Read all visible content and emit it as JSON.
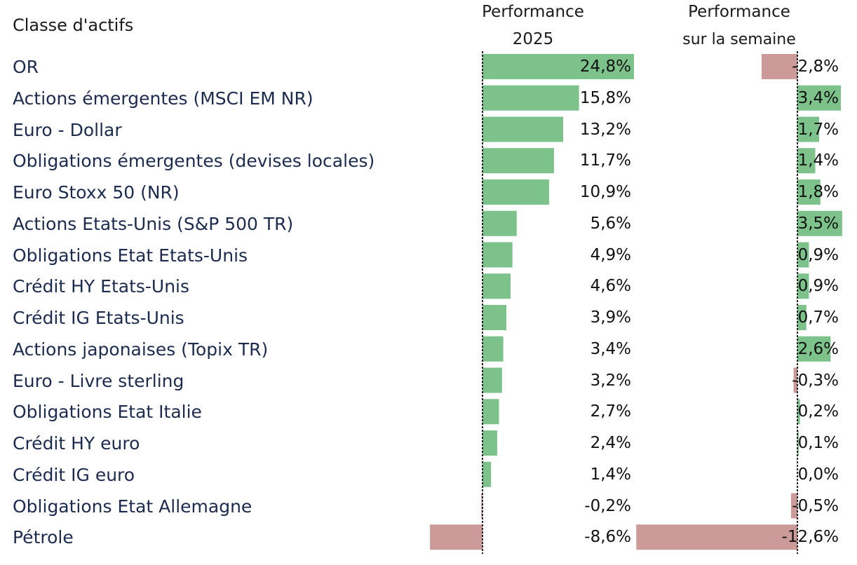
{
  "header": {
    "category": "Classe d'actifs",
    "ytd_line1": "Performance",
    "ytd_line2": "2025",
    "week_line1": "Performance",
    "week_line2": "sur la semaine"
  },
  "colors": {
    "positive": "#7cc28a",
    "negative": "#cc9a98",
    "label": "#1c2b4e"
  },
  "chart_data": {
    "type": "bar",
    "orientation": "horizontal",
    "categories": [
      "OR",
      "Actions émergentes (MSCI EM NR)",
      "Euro - Dollar",
      "Obligations émergentes (devises locales)",
      "Euro Stoxx 50 (NR)",
      "Actions Etats-Unis (S&P 500 TR)",
      "Obligations Etat Etats-Unis",
      "Crédit HY Etats-Unis",
      "Crédit IG Etats-Unis",
      "Actions japonaises (Topix TR)",
      "Euro - Livre sterling",
      "Obligations Etat Italie",
      "Crédit HY euro",
      "Crédit IG euro",
      "Obligations Etat Allemagne",
      "Pétrole"
    ],
    "series": [
      {
        "name": "Performance 2025",
        "values": [
          24.8,
          15.8,
          13.2,
          11.7,
          10.9,
          5.6,
          4.9,
          4.6,
          3.9,
          3.4,
          3.2,
          2.7,
          2.4,
          1.4,
          -0.2,
          -8.6
        ],
        "labels": [
          "24,8%",
          "15,8%",
          "13,2%",
          "11,7%",
          "10,9%",
          "5,6%",
          "4,9%",
          "4,6%",
          "3,9%",
          "3,4%",
          "3,2%",
          "2,7%",
          "2,4%",
          "1,4%",
          "-0,2%",
          "-8,6%"
        ]
      },
      {
        "name": "Performance sur la semaine",
        "values": [
          -2.8,
          3.4,
          1.7,
          1.4,
          1.8,
          3.5,
          0.9,
          0.9,
          0.7,
          2.6,
          -0.3,
          0.2,
          0.1,
          0.0,
          -0.5,
          -12.6
        ],
        "labels": [
          "-2,8%",
          "3,4%",
          "1,7%",
          "1,4%",
          "1,8%",
          "3,5%",
          "0,9%",
          "0,9%",
          "0,7%",
          "2,6%",
          "-0,3%",
          "0,2%",
          "0,1%",
          "0,0%",
          "-0,5%",
          "-12,6%"
        ]
      }
    ],
    "title": "",
    "xlabel": "",
    "ylabel": ""
  }
}
